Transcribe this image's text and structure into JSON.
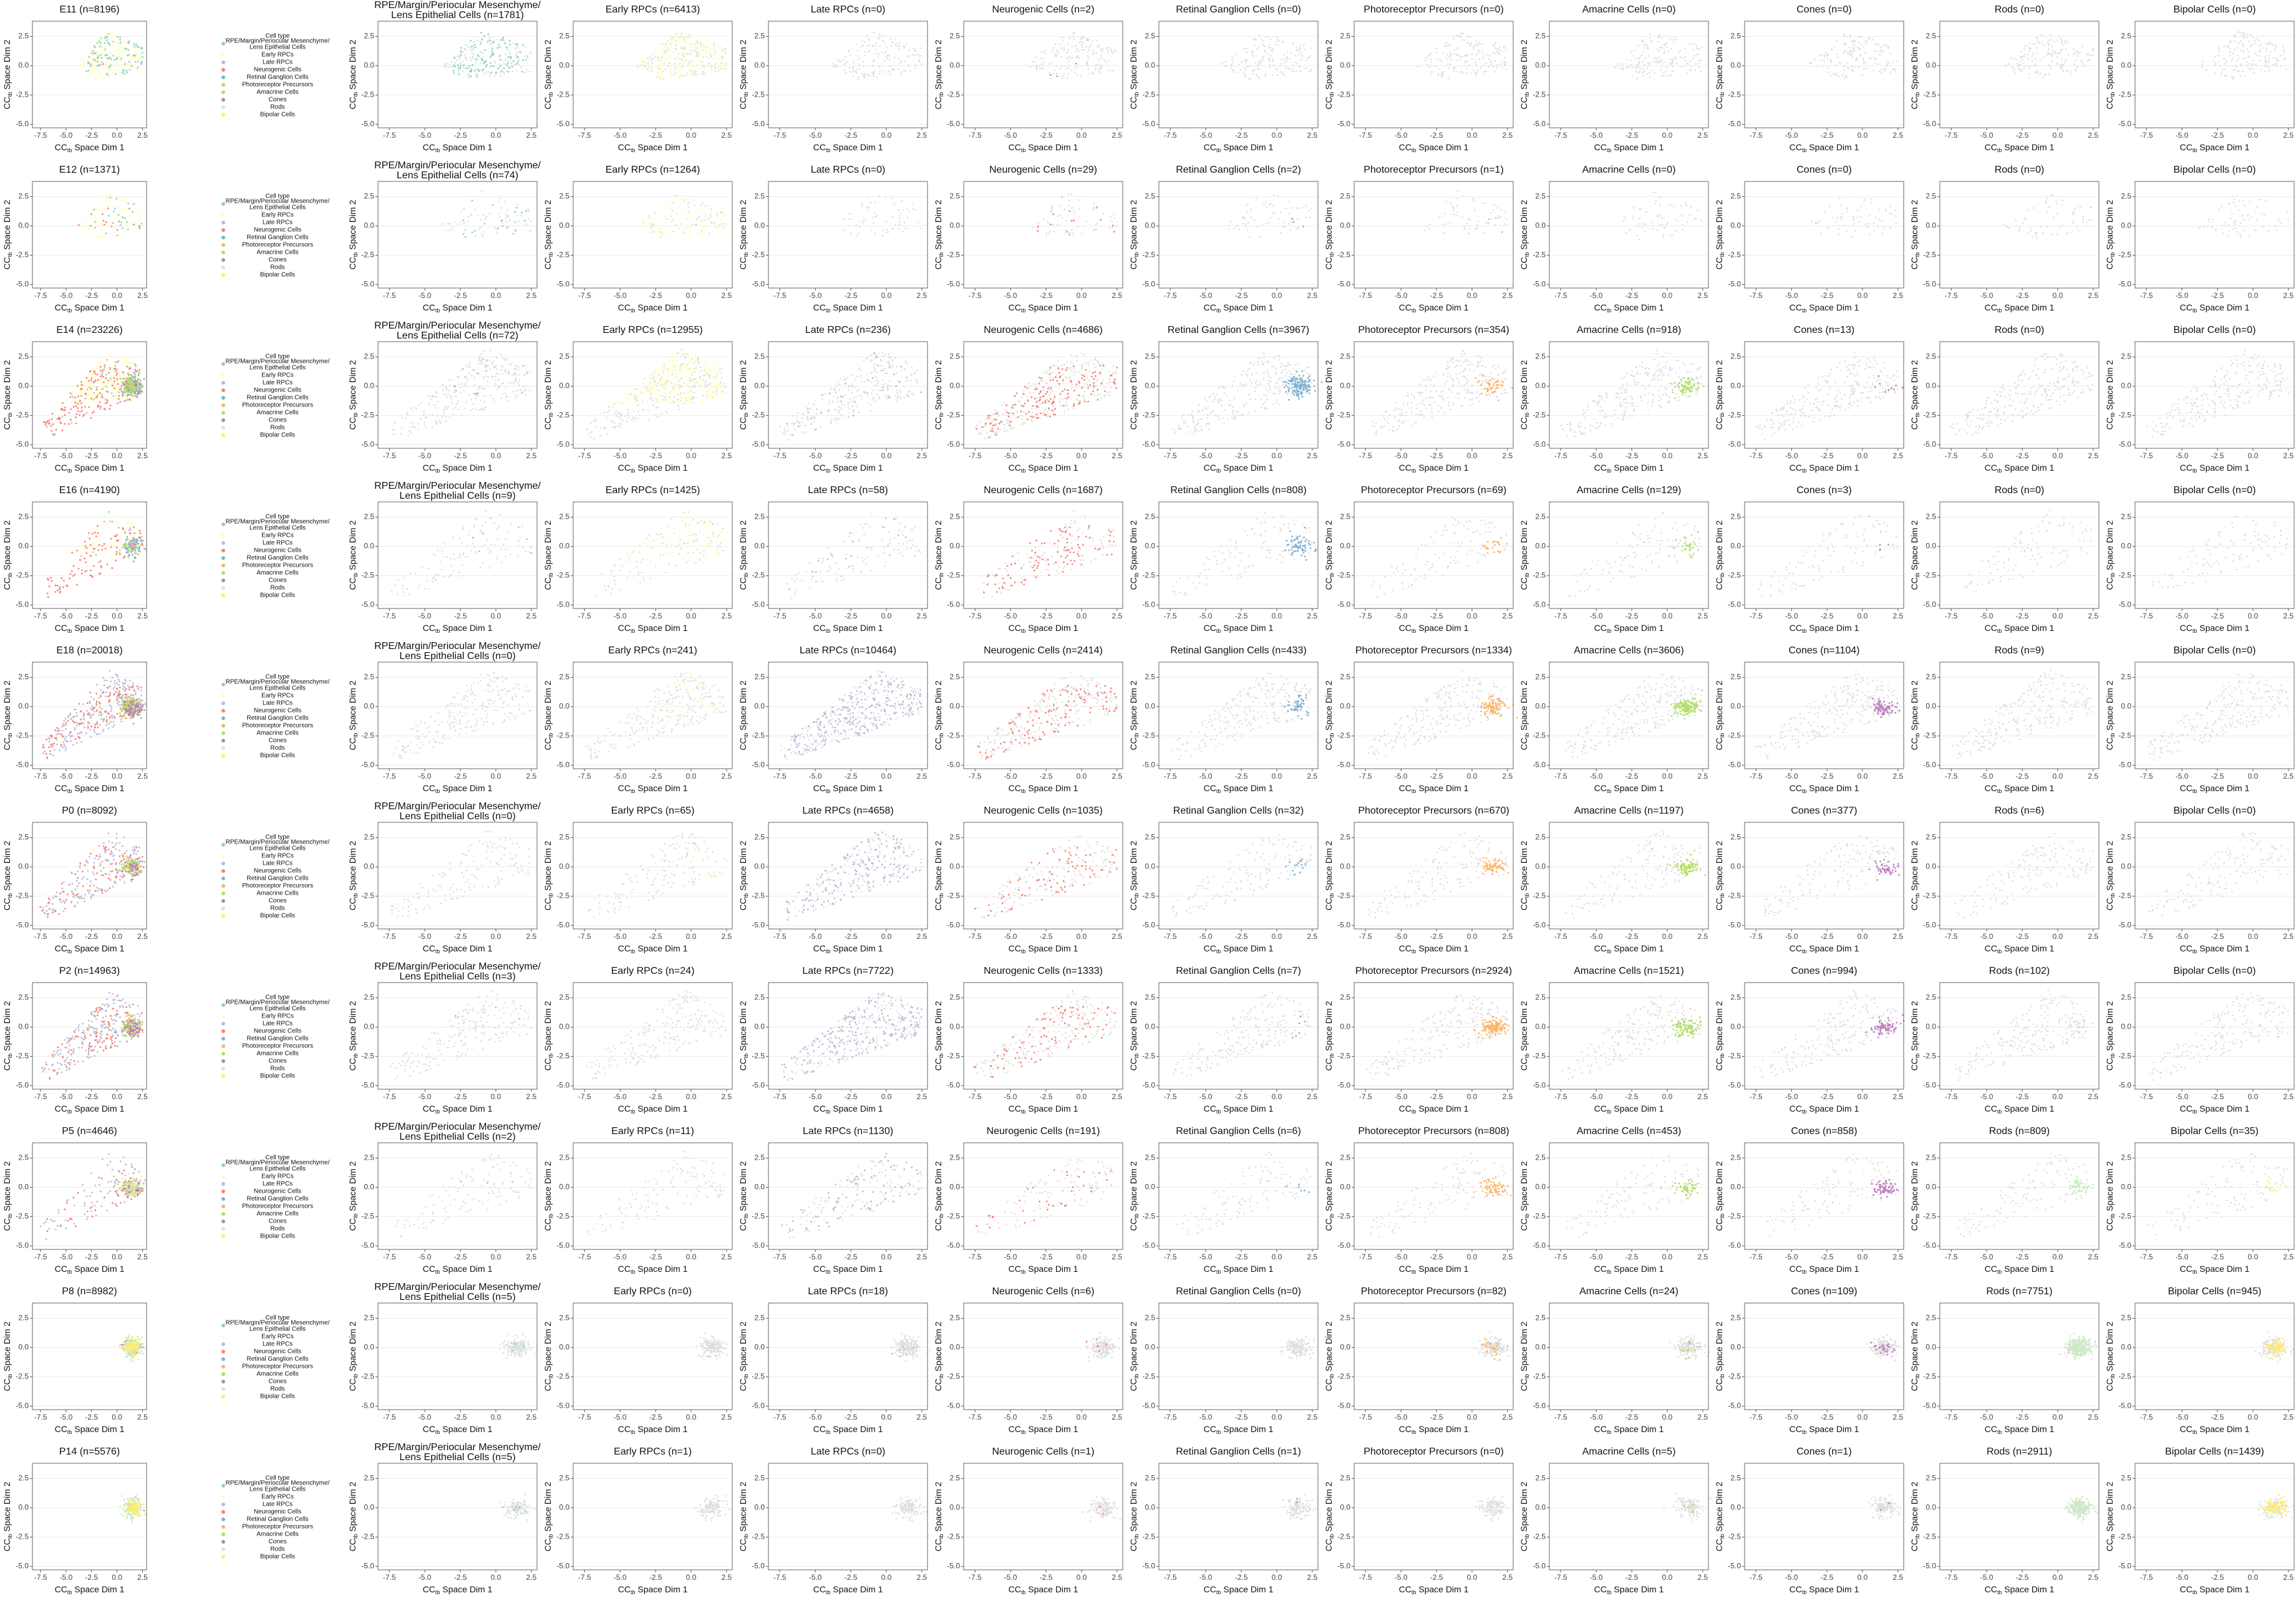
{
  "chart_data": {
    "type": "scatter-grid",
    "xlabel": [
      "CC",
      "tb",
      " Space Dim 1"
    ],
    "ylabel": [
      "CC",
      "tb",
      " Space Dim 2"
    ],
    "xlim": [
      -8.3,
      2.9
    ],
    "ylim": [
      -5.3,
      3.8
    ],
    "xticks": [
      -7.5,
      {
        "value": -5,
        "label": "-5.0"
      },
      -2.5,
      {
        "value": 0,
        "label": "0.0"
      },
      2.5
    ],
    "yticks": [
      {
        "value": -5,
        "label": "-5.0"
      },
      -2.5,
      {
        "value": 0,
        "label": "0.0"
      },
      2.5
    ],
    "grid": true,
    "legend_title": "Cell type",
    "cell_types": [
      {
        "name": [
          "RPE/Margin/Periocular Mesenchyme/",
          "Lens Epithelial Cells"
        ],
        "color": "#8dd3c7"
      },
      {
        "name": [
          "Early RPCs"
        ],
        "color": "#ffffb3"
      },
      {
        "name": [
          "Late RPCs"
        ],
        "color": "#bebada"
      },
      {
        "name": [
          "Neurogenic Cells"
        ],
        "color": "#fb8072"
      },
      {
        "name": [
          "Retinal Ganglion Cells"
        ],
        "color": "#80b1d3"
      },
      {
        "name": [
          "Photoreceptor Precursors"
        ],
        "color": "#fdb462"
      },
      {
        "name": [
          "Amacrine Cells"
        ],
        "color": "#b3de69"
      },
      {
        "name": [
          "Cones"
        ],
        "color": "#bc80bd"
      },
      {
        "name": [
          "Rods"
        ],
        "color": "#ccebc5"
      },
      {
        "name": [
          "Bipolar Cells"
        ],
        "color": "#ffed6f"
      }
    ],
    "rows": [
      {
        "title": "E11 (n=8196)",
        "n": 8196,
        "panels": [
          {
            "title": [
              "RPE/Margin/Periocular Mesenchyme/",
              "Lens Epithelial Cells (n=1781)"
            ],
            "n": 1781
          },
          {
            "title": "Early RPCs (n=6413)",
            "n": 6413
          },
          {
            "title": "Late RPCs (n=0)",
            "n": 0
          },
          {
            "title": "Neurogenic Cells (n=2)",
            "n": 2
          },
          {
            "title": "Retinal Ganglion Cells (n=0)",
            "n": 0
          },
          {
            "title": "Photoreceptor Precursors (n=0)",
            "n": 0
          },
          {
            "title": "Amacrine Cells (n=0)",
            "n": 0
          },
          {
            "title": "Cones (n=0)",
            "n": 0
          },
          {
            "title": "Rods (n=0)",
            "n": 0
          },
          {
            "title": "Bipolar Cells (n=0)",
            "n": 0
          }
        ]
      },
      {
        "title": "E12 (n=1371)",
        "n": 1371,
        "panels": [
          {
            "title": [
              "RPE/Margin/Periocular Mesenchyme/",
              "Lens Epithelial Cells (n=74)"
            ],
            "n": 74
          },
          {
            "title": "Early RPCs (n=1264)",
            "n": 1264
          },
          {
            "title": "Late RPCs (n=0)",
            "n": 0
          },
          {
            "title": "Neurogenic Cells (n=29)",
            "n": 29
          },
          {
            "title": "Retinal Ganglion Cells (n=2)",
            "n": 2
          },
          {
            "title": "Photoreceptor Precursors (n=1)",
            "n": 1
          },
          {
            "title": "Amacrine Cells (n=0)",
            "n": 0
          },
          {
            "title": "Cones (n=0)",
            "n": 0
          },
          {
            "title": "Rods (n=0)",
            "n": 0
          },
          {
            "title": "Bipolar Cells (n=0)",
            "n": 0
          }
        ]
      },
      {
        "title": "E14 (n=23226)",
        "n": 23226,
        "panels": [
          {
            "title": [
              "RPE/Margin/Periocular Mesenchyme/",
              "Lens Epithelial Cells (n=72)"
            ],
            "n": 72
          },
          {
            "title": "Early RPCs (n=12955)",
            "n": 12955
          },
          {
            "title": "Late RPCs (n=236)",
            "n": 236
          },
          {
            "title": "Neurogenic Cells (n=4686)",
            "n": 4686
          },
          {
            "title": "Retinal Ganglion Cells (n=3967)",
            "n": 3967
          },
          {
            "title": "Photoreceptor Precursors (n=354)",
            "n": 354
          },
          {
            "title": "Amacrine Cells (n=918)",
            "n": 918
          },
          {
            "title": "Cones (n=13)",
            "n": 13
          },
          {
            "title": "Rods (n=0)",
            "n": 0
          },
          {
            "title": "Bipolar Cells (n=0)",
            "n": 0
          }
        ]
      },
      {
        "title": "E16 (n=4190)",
        "n": 4190,
        "panels": [
          {
            "title": [
              "RPE/Margin/Periocular Mesenchyme/",
              "Lens Epithelial Cells (n=9)"
            ],
            "n": 9
          },
          {
            "title": "Early RPCs (n=1425)",
            "n": 1425
          },
          {
            "title": "Late RPCs (n=58)",
            "n": 58
          },
          {
            "title": "Neurogenic Cells (n=1687)",
            "n": 1687
          },
          {
            "title": "Retinal Ganglion Cells (n=808)",
            "n": 808
          },
          {
            "title": "Photoreceptor Precursors (n=69)",
            "n": 69
          },
          {
            "title": "Amacrine Cells (n=129)",
            "n": 129
          },
          {
            "title": "Cones (n=3)",
            "n": 3
          },
          {
            "title": "Rods (n=0)",
            "n": 0
          },
          {
            "title": "Bipolar Cells (n=0)",
            "n": 0
          }
        ]
      },
      {
        "title": "E18 (n=20018)",
        "n": 20018,
        "panels": [
          {
            "title": [
              "RPE/Margin/Periocular Mesenchyme/",
              "Lens Epithelial Cells (n=0)"
            ],
            "n": 0
          },
          {
            "title": "Early RPCs (n=241)",
            "n": 241
          },
          {
            "title": "Late RPCs (n=10464)",
            "n": 10464
          },
          {
            "title": "Neurogenic Cells (n=2414)",
            "n": 2414
          },
          {
            "title": "Retinal Ganglion Cells (n=433)",
            "n": 433
          },
          {
            "title": "Photoreceptor Precursors (n=1334)",
            "n": 1334
          },
          {
            "title": "Amacrine Cells (n=3606)",
            "n": 3606
          },
          {
            "title": "Cones (n=1104)",
            "n": 1104
          },
          {
            "title": "Rods (n=9)",
            "n": 9
          },
          {
            "title": "Bipolar Cells (n=0)",
            "n": 0
          }
        ]
      },
      {
        "title": "P0 (n=8092)",
        "n": 8092,
        "panels": [
          {
            "title": [
              "RPE/Margin/Periocular Mesenchyme/",
              "Lens Epithelial Cells (n=0)"
            ],
            "n": 0
          },
          {
            "title": "Early RPCs (n=65)",
            "n": 65
          },
          {
            "title": "Late RPCs (n=4658)",
            "n": 4658
          },
          {
            "title": "Neurogenic Cells (n=1035)",
            "n": 1035
          },
          {
            "title": "Retinal Ganglion Cells (n=32)",
            "n": 32
          },
          {
            "title": "Photoreceptor Precursors (n=670)",
            "n": 670
          },
          {
            "title": "Amacrine Cells (n=1197)",
            "n": 1197
          },
          {
            "title": "Cones (n=377)",
            "n": 377
          },
          {
            "title": "Rods (n=6)",
            "n": 6
          },
          {
            "title": "Bipolar Cells (n=0)",
            "n": 0
          }
        ]
      },
      {
        "title": "P2 (n=14963)",
        "n": 14963,
        "panels": [
          {
            "title": [
              "RPE/Margin/Periocular Mesenchyme/",
              "Lens Epithelial Cells (n=3)"
            ],
            "n": 3
          },
          {
            "title": "Early RPCs (n=24)",
            "n": 24
          },
          {
            "title": "Late RPCs (n=7722)",
            "n": 7722
          },
          {
            "title": "Neurogenic Cells (n=1333)",
            "n": 1333
          },
          {
            "title": "Retinal Ganglion Cells (n=7)",
            "n": 7
          },
          {
            "title": "Photoreceptor Precursors (n=2924)",
            "n": 2924
          },
          {
            "title": "Amacrine Cells (n=1521)",
            "n": 1521
          },
          {
            "title": "Cones (n=994)",
            "n": 994
          },
          {
            "title": "Rods (n=102)",
            "n": 102
          },
          {
            "title": "Bipolar Cells (n=0)",
            "n": 0
          }
        ]
      },
      {
        "title": "P5 (n=4646)",
        "n": 4646,
        "panels": [
          {
            "title": [
              "RPE/Margin/Periocular Mesenchyme/",
              "Lens Epithelial Cells (n=2)"
            ],
            "n": 2
          },
          {
            "title": "Early RPCs (n=11)",
            "n": 11
          },
          {
            "title": "Late RPCs (n=1130)",
            "n": 1130
          },
          {
            "title": "Neurogenic Cells (n=191)",
            "n": 191
          },
          {
            "title": "Retinal Ganglion Cells (n=6)",
            "n": 6
          },
          {
            "title": "Photoreceptor Precursors (n=808)",
            "n": 808
          },
          {
            "title": "Amacrine Cells (n=453)",
            "n": 453
          },
          {
            "title": "Cones (n=858)",
            "n": 858
          },
          {
            "title": "Rods (n=809)",
            "n": 809
          },
          {
            "title": "Bipolar Cells (n=35)",
            "n": 35
          }
        ]
      },
      {
        "title": "P8 (n=8982)",
        "n": 8982,
        "panels": [
          {
            "title": [
              "RPE/Margin/Periocular Mesenchyme/",
              "Lens Epithelial Cells (n=5)"
            ],
            "n": 5
          },
          {
            "title": "Early RPCs (n=0)",
            "n": 0
          },
          {
            "title": "Late RPCs (n=18)",
            "n": 18
          },
          {
            "title": "Neurogenic Cells (n=6)",
            "n": 6
          },
          {
            "title": "Retinal Ganglion Cells (n=0)",
            "n": 0
          },
          {
            "title": "Photoreceptor Precursors (n=82)",
            "n": 82
          },
          {
            "title": "Amacrine Cells (n=24)",
            "n": 24
          },
          {
            "title": "Cones (n=109)",
            "n": 109
          },
          {
            "title": "Rods (n=7751)",
            "n": 7751
          },
          {
            "title": "Bipolar Cells (n=945)",
            "n": 945
          }
        ]
      },
      {
        "title": "P14 (n=5576)",
        "n": 5576,
        "panels": [
          {
            "title": [
              "RPE/Margin/Periocular Mesenchyme/",
              "Lens Epithelial Cells (n=5)"
            ],
            "n": 5
          },
          {
            "title": "Early RPCs (n=1)",
            "n": 1
          },
          {
            "title": "Late RPCs (n=0)",
            "n": 0
          },
          {
            "title": "Neurogenic Cells (n=1)",
            "n": 1
          },
          {
            "title": "Retinal Ganglion Cells (n=1)",
            "n": 1
          },
          {
            "title": "Photoreceptor Precursors (n=0)",
            "n": 0
          },
          {
            "title": "Amacrine Cells (n=5)",
            "n": 5
          },
          {
            "title": "Cones (n=1)",
            "n": 1
          },
          {
            "title": "Rods (n=2911)",
            "n": 2911
          },
          {
            "title": "Bipolar Cells (n=1439)",
            "n": 1439
          }
        ]
      }
    ]
  }
}
